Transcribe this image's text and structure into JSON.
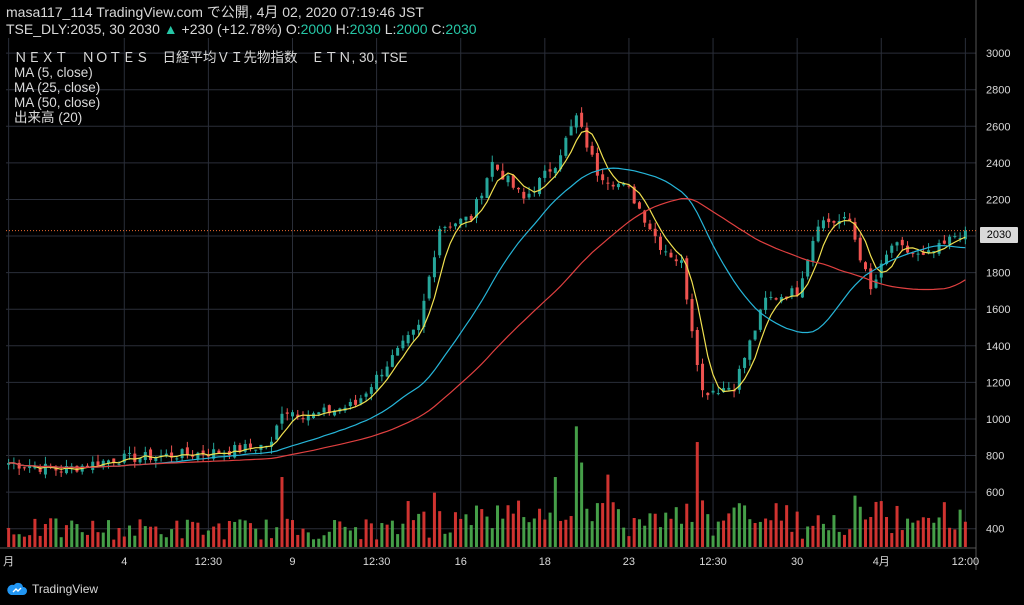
{
  "header": {
    "line1": "masa117_114 TradingView.com で公開, 4月 02, 2020 07:19:46 JST",
    "symbol_line": "TSE_DLY:2035, 30",
    "last": "2030",
    "change_arrow": "▲",
    "change": "+230 (+12.78%)",
    "o_label": "O:",
    "o_val": "2000",
    "h_label": "H:",
    "h_val": "2030",
    "l_label": "L:",
    "l_val": "2000",
    "c_label": "C:",
    "c_val": "2030",
    "title": "ＮＥＸＴ　ＮＯＴＥＳ　日経平均ＶＩ先物指数　ＥＴＮ, 30, TSE"
  },
  "indicators": [
    "MA (5, close)",
    "MA (25, close)",
    "MA (50, close)",
    "出来高 (20)"
  ],
  "brand": "TradingView",
  "price_tag": "2030",
  "colors": {
    "up": "#26a69a",
    "down": "#ef5350",
    "vol_up": "#4caf50",
    "vol_down": "#e53935",
    "ma5": "#f0e050",
    "ma25": "#26b5d8",
    "ma50": "#e04040",
    "grid": "#2a2e39",
    "axis_text": "#d9d9d9"
  },
  "chart_data": {
    "type": "candlestick",
    "y_axis": {
      "min": 300,
      "max": 3050,
      "ticks": [
        400,
        600,
        800,
        1000,
        1200,
        1400,
        1600,
        1800,
        2000,
        2200,
        2400,
        2600,
        2800,
        3000
      ]
    },
    "x_axis_labels": [
      {
        "label": "月",
        "index": 0
      },
      {
        "label": "4",
        "index": 22
      },
      {
        "label": "12:30",
        "index": 38
      },
      {
        "label": "9",
        "index": 54
      },
      {
        "label": "12:30",
        "index": 70
      },
      {
        "label": "16",
        "index": 86
      },
      {
        "label": "18",
        "index": 102
      },
      {
        "label": "23",
        "index": 118
      },
      {
        "label": "12:30",
        "index": 134
      },
      {
        "label": "30",
        "index": 150
      },
      {
        "label": "4月",
        "index": 166
      },
      {
        "label": "12:00",
        "index": 182
      }
    ],
    "last_price": 2030,
    "anchors": [
      {
        "i": 0,
        "c": 760
      },
      {
        "i": 10,
        "c": 720
      },
      {
        "i": 20,
        "c": 780
      },
      {
        "i": 30,
        "c": 800
      },
      {
        "i": 40,
        "c": 820
      },
      {
        "i": 50,
        "c": 860
      },
      {
        "i": 52,
        "c": 1050
      },
      {
        "i": 58,
        "c": 1020
      },
      {
        "i": 66,
        "c": 1080
      },
      {
        "i": 72,
        "c": 1300
      },
      {
        "i": 78,
        "c": 1500
      },
      {
        "i": 82,
        "c": 2050
      },
      {
        "i": 88,
        "c": 2100
      },
      {
        "i": 92,
        "c": 2400
      },
      {
        "i": 98,
        "c": 2200
      },
      {
        "i": 104,
        "c": 2400
      },
      {
        "i": 108,
        "c": 2650
      },
      {
        "i": 112,
        "c": 2350
      },
      {
        "i": 118,
        "c": 2250
      },
      {
        "i": 124,
        "c": 1950
      },
      {
        "i": 128,
        "c": 1850
      },
      {
        "i": 132,
        "c": 1150
      },
      {
        "i": 138,
        "c": 1180
      },
      {
        "i": 144,
        "c": 1650
      },
      {
        "i": 150,
        "c": 1700
      },
      {
        "i": 154,
        "c": 2080
      },
      {
        "i": 160,
        "c": 2080
      },
      {
        "i": 164,
        "c": 1700
      },
      {
        "i": 168,
        "c": 1950
      },
      {
        "i": 174,
        "c": 1880
      },
      {
        "i": 178,
        "c": 1950
      },
      {
        "i": 181,
        "c": 2030
      }
    ],
    "volume_spikes": [
      {
        "i": 52,
        "v": 580,
        "dir": "down"
      },
      {
        "i": 81,
        "v": 450,
        "dir": "down"
      },
      {
        "i": 108,
        "v": 1000,
        "dir": "up"
      },
      {
        "i": 109,
        "v": 700,
        "dir": "up"
      },
      {
        "i": 131,
        "v": 870,
        "dir": "down"
      },
      {
        "i": 114,
        "v": 600,
        "dir": "down"
      },
      {
        "i": 104,
        "v": 580,
        "dir": "up"
      }
    ]
  }
}
